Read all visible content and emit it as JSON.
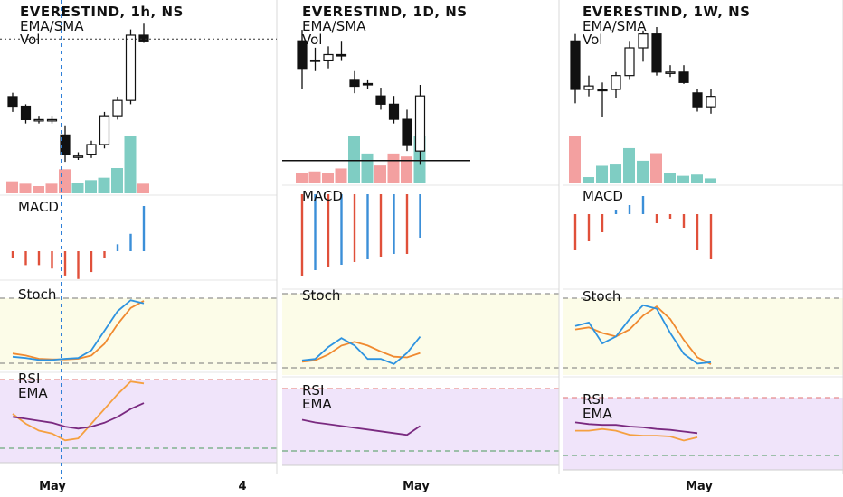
{
  "colors": {
    "up": "#7fcdc3",
    "down": "#f3a0a0",
    "macd_pos": "#3b8fd8",
    "macd_neg": "#e0503a",
    "stoch_k": "#2e93e0",
    "stoch_d": "#f08a30",
    "rsi": "#f5a040",
    "rsi_ema": "#7a2a80",
    "stoch_bg": "#fcfce8",
    "rsi_bg": "#f0e4fa"
  },
  "chart_data": [
    {
      "panel": "1h",
      "type": "candlestick",
      "title": "EVERESTIND, 1h, NS",
      "labels": [
        "EMA/SMA",
        "Vol"
      ],
      "x_ticks": [
        "May",
        "4"
      ],
      "ohlc": [
        {
          "o": 1820,
          "h": 1822,
          "l": 1812,
          "c": 1815
        },
        {
          "o": 1815,
          "h": 1816,
          "l": 1806,
          "c": 1808
        },
        {
          "o": 1808,
          "h": 1810,
          "l": 1806,
          "c": 1808
        },
        {
          "o": 1808,
          "h": 1810,
          "l": 1806,
          "c": 1808
        },
        {
          "o": 1800,
          "h": 1805,
          "l": 1786,
          "c": 1790
        },
        {
          "o": 1789,
          "h": 1791,
          "l": 1787,
          "c": 1789
        },
        {
          "o": 1790,
          "h": 1797,
          "l": 1788,
          "c": 1795
        },
        {
          "o": 1795,
          "h": 1812,
          "l": 1793,
          "c": 1810
        },
        {
          "o": 1810,
          "h": 1820,
          "l": 1808,
          "c": 1818
        },
        {
          "o": 1818,
          "h": 1855,
          "l": 1816,
          "c": 1852
        },
        {
          "o": 1852,
          "h": 1858,
          "l": 1848,
          "c": 1849
        }
      ],
      "volume": [
        10,
        8,
        6,
        8,
        20,
        9,
        11,
        13,
        21,
        48,
        8
      ],
      "volume_dir": [
        "down",
        "down",
        "down",
        "down",
        "down",
        "up",
        "up",
        "up",
        "up",
        "up",
        "down"
      ],
      "macd": [
        -1,
        -2,
        -2,
        -2.5,
        -3.5,
        -4,
        -3,
        -1,
        1,
        2.5,
        6.5
      ],
      "stoch_k": [
        10,
        8,
        5,
        5,
        7,
        8,
        20,
        50,
        80,
        97,
        92
      ],
      "stoch_d": [
        15,
        12,
        7,
        6,
        6,
        7,
        12,
        30,
        60,
        85,
        96
      ],
      "rsi": [
        55,
        45,
        38,
        35,
        28,
        30,
        45,
        60,
        75,
        88,
        86
      ],
      "rsi_ema": [
        52,
        50,
        48,
        46,
        42,
        40,
        42,
        46,
        52,
        60,
        66
      ],
      "price_line": 1850,
      "marker_index": 4
    },
    {
      "panel": "1D",
      "type": "candlestick",
      "title": "EVERESTIND, 1D, NS",
      "labels": [
        "EMA/SMA",
        "Vol"
      ],
      "x_ticks": [
        "May"
      ],
      "ohlc": [
        {
          "o": 1890,
          "h": 1898,
          "l": 1855,
          "c": 1870
        },
        {
          "o": 1875,
          "h": 1885,
          "l": 1868,
          "c": 1876
        },
        {
          "o": 1876,
          "h": 1886,
          "l": 1870,
          "c": 1880
        },
        {
          "o": 1880,
          "h": 1890,
          "l": 1876,
          "c": 1879
        },
        {
          "o": 1862,
          "h": 1868,
          "l": 1852,
          "c": 1857
        },
        {
          "o": 1859,
          "h": 1862,
          "l": 1855,
          "c": 1858
        },
        {
          "o": 1850,
          "h": 1856,
          "l": 1840,
          "c": 1844
        },
        {
          "o": 1844,
          "h": 1850,
          "l": 1830,
          "c": 1833
        },
        {
          "o": 1833,
          "h": 1840,
          "l": 1810,
          "c": 1814
        },
        {
          "o": 1810,
          "h": 1858,
          "l": 1800,
          "c": 1850
        }
      ],
      "volume": [
        10,
        12,
        10,
        15,
        48,
        30,
        18,
        30,
        27,
        48
      ],
      "volume_dir": [
        "down",
        "down",
        "down",
        "down",
        "up",
        "up",
        "down",
        "down",
        "down",
        "up"
      ],
      "macd": [
        -15,
        -14,
        -13.5,
        -13,
        -12.5,
        -12,
        -11.5,
        -11,
        -11,
        -8
      ],
      "stoch_k": [
        10,
        12,
        28,
        40,
        30,
        12,
        12,
        5,
        20,
        42
      ],
      "stoch_d": [
        8,
        10,
        18,
        30,
        35,
        30,
        22,
        15,
        14,
        20
      ],
      "rsi_ema": [
        55,
        52,
        50,
        48,
        46,
        44,
        42,
        40,
        38,
        48
      ],
      "support_line": 1803
    },
    {
      "panel": "1W",
      "type": "candlestick",
      "title": "EVERESTIND, 1W, NS",
      "labels": [
        "EMA/SMA",
        "Vol"
      ],
      "x_ticks": [
        "May"
      ],
      "ohlc": [
        {
          "o": 1950,
          "h": 1960,
          "l": 1860,
          "c": 1880
        },
        {
          "o": 1880,
          "h": 1900,
          "l": 1870,
          "c": 1885
        },
        {
          "o": 1880,
          "h": 1890,
          "l": 1840,
          "c": 1878
        },
        {
          "o": 1880,
          "h": 1905,
          "l": 1868,
          "c": 1900
        },
        {
          "o": 1900,
          "h": 1950,
          "l": 1895,
          "c": 1940
        },
        {
          "o": 1940,
          "h": 1965,
          "l": 1920,
          "c": 1960
        },
        {
          "o": 1960,
          "h": 1970,
          "l": 1900,
          "c": 1905
        },
        {
          "o": 1905,
          "h": 1915,
          "l": 1898,
          "c": 1905
        },
        {
          "o": 1905,
          "h": 1915,
          "l": 1888,
          "c": 1890
        },
        {
          "o": 1875,
          "h": 1880,
          "l": 1848,
          "c": 1855
        },
        {
          "o": 1855,
          "h": 1880,
          "l": 1845,
          "c": 1870
        }
      ],
      "volume": [
        38,
        5,
        14,
        15,
        28,
        18,
        24,
        8,
        6,
        7,
        4
      ],
      "volume_dir": [
        "down",
        "up",
        "up",
        "up",
        "up",
        "up",
        "down",
        "up",
        "up",
        "up",
        "up"
      ],
      "macd": [
        -4,
        -3,
        -2,
        0.5,
        1,
        2,
        -1,
        -0.5,
        -1.5,
        -4,
        -5
      ],
      "stoch_k": [
        60,
        65,
        35,
        45,
        70,
        90,
        85,
        50,
        20,
        6,
        8
      ],
      "stoch_d": [
        55,
        58,
        50,
        45,
        55,
        75,
        88,
        70,
        40,
        15,
        5
      ],
      "rsi": [
        50,
        50,
        52,
        50,
        45,
        44,
        44,
        43,
        38,
        42
      ],
      "rsi_ema": [
        60,
        58,
        57,
        57,
        55,
        54,
        52,
        51,
        49,
        47
      ]
    }
  ]
}
